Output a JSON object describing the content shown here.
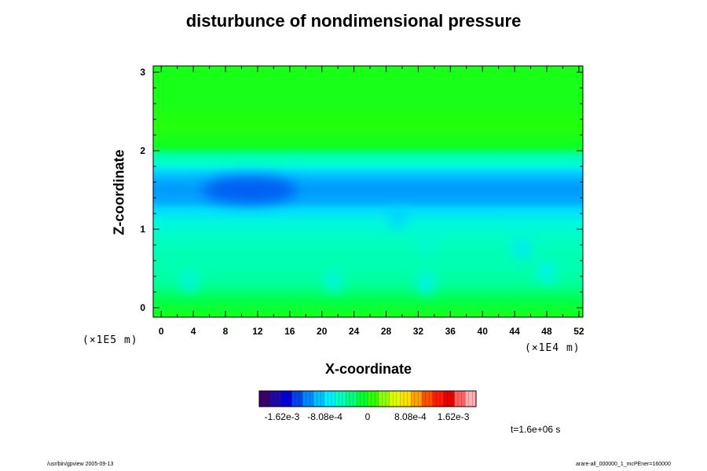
{
  "chart_data": {
    "type": "heatmap",
    "title": "disturbunce of nondimensional pressure",
    "xlabel": "X-coordinate",
    "ylabel": "Z-coordinate",
    "x_unit": "(×1E4 m)",
    "y_unit": "(×1E5 m)",
    "x_ticks": [
      0,
      4,
      8,
      12,
      16,
      20,
      24,
      28,
      32,
      36,
      40,
      44,
      48,
      52
    ],
    "y_ticks": [
      0,
      1,
      2,
      3
    ],
    "xlim": [
      -1,
      52.5
    ],
    "ylim": [
      -0.12,
      3.08
    ],
    "colorbar": {
      "labels": [
        "-1.62e-3",
        "-8.08e-4",
        "0",
        "8.08e-4",
        "1.62e-3"
      ],
      "label_values": [
        -0.00162,
        -0.000808,
        0,
        0.000808,
        0.00162
      ],
      "range": [
        -0.00205,
        0.00205
      ],
      "colors": [
        "#3a0070",
        "#1e0aa8",
        "#0000d8",
        "#0044ee",
        "#0088ff",
        "#00c0ff",
        "#00f0ff",
        "#00ffc0",
        "#00ff80",
        "#00ff30",
        "#30ff00",
        "#90ff00",
        "#dcff00",
        "#ffe000",
        "#ffa000",
        "#ff5000",
        "#ff1a00",
        "#e60000",
        "#ff6060",
        "#ffb0b0"
      ]
    },
    "field_profile": {
      "z": [
        -0.12,
        0.1,
        0.3,
        0.5,
        0.7,
        0.9,
        1.1,
        1.25,
        1.35,
        1.5,
        1.62,
        1.72,
        1.8,
        1.87,
        1.95,
        2.05,
        2.3,
        2.6,
        3.08
      ],
      "value": [
        0.0,
        -0.00018,
        -0.0004,
        -0.00048,
        -0.0005,
        -0.00056,
        -0.00065,
        -0.00085,
        -0.00105,
        -0.00112,
        -0.00105,
        -0.0009,
        -0.00065,
        -0.00055,
        -0.00045,
        -5e-05,
        6e-05,
        0.0,
        0.0
      ]
    },
    "features": [
      {
        "x": 11,
        "z": 1.5,
        "value": -0.00135
      },
      {
        "x": 3.5,
        "z": 0.33,
        "value": -0.0007
      },
      {
        "x": 21.5,
        "z": 0.33,
        "value": -0.0007
      },
      {
        "x": 33,
        "z": 0.3,
        "value": -0.00075
      },
      {
        "x": 33,
        "z": 0.8,
        "value": -0.00062
      },
      {
        "x": 29.5,
        "z": 1.15,
        "value": -0.0009
      },
      {
        "x": 45,
        "z": 0.75,
        "value": -0.0008
      },
      {
        "x": 48,
        "z": 0.45,
        "value": -0.00075
      }
    ],
    "annotation": "t=1.6e+06 s"
  },
  "footer": {
    "left": "/usr/bin/gpview 2005-09-13",
    "right": "arare-all_000000_1_mcPEner=160000"
  }
}
